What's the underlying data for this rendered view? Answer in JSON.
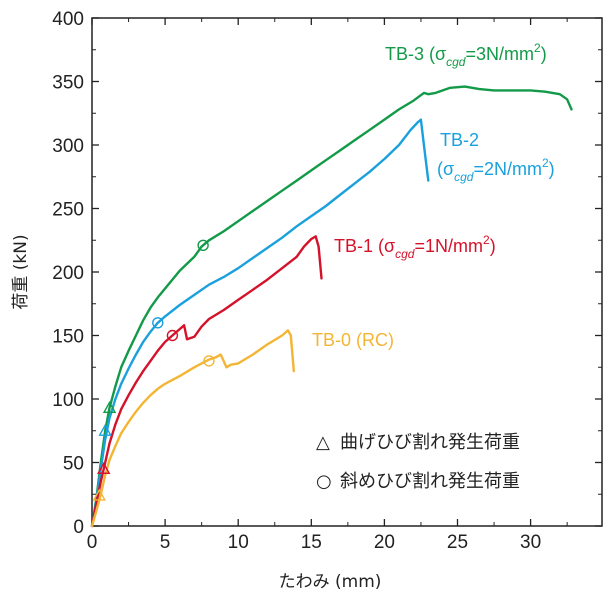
{
  "chart_data": {
    "type": "line",
    "xlabel": "たわみ (mm)",
    "ylabel": "荷重 (kN)",
    "xlim": [
      0,
      34
    ],
    "ylim": [
      0,
      400
    ],
    "x_ticks": [
      "0",
      "5",
      "10",
      "15",
      "20",
      "25",
      "30"
    ],
    "y_ticks": [
      "0",
      "50",
      "100",
      "150",
      "200",
      "250",
      "300",
      "350",
      "400"
    ],
    "grid": false,
    "series": [
      {
        "name": "TB-3",
        "label_main": "TB-3 (σ",
        "label_sub": "cgd",
        "label_rest": "=3N/mm",
        "label_sup": "2",
        "label_close": ")",
        "color": "#129a48",
        "points": [
          [
            0,
            0
          ],
          [
            0.3,
            22
          ],
          [
            0.6,
            50
          ],
          [
            0.9,
            75
          ],
          [
            1.2,
            93
          ],
          [
            1.6,
            110
          ],
          [
            2,
            125
          ],
          [
            2.5,
            138
          ],
          [
            3,
            150
          ],
          [
            3.5,
            162
          ],
          [
            4,
            172
          ],
          [
            4.5,
            180
          ],
          [
            5,
            187
          ],
          [
            6,
            201
          ],
          [
            7,
            212
          ],
          [
            7.5,
            220
          ],
          [
            8,
            225
          ],
          [
            9,
            232
          ],
          [
            10,
            240
          ],
          [
            11,
            248
          ],
          [
            12,
            256
          ],
          [
            13,
            264
          ],
          [
            14,
            272
          ],
          [
            15,
            280
          ],
          [
            16,
            288
          ],
          [
            17,
            296
          ],
          [
            18,
            304
          ],
          [
            19,
            312
          ],
          [
            20,
            320
          ],
          [
            21,
            328
          ],
          [
            22,
            335
          ],
          [
            22.7,
            341
          ],
          [
            23,
            340
          ],
          [
            23.5,
            341
          ],
          [
            24.5,
            345
          ],
          [
            25.5,
            346
          ],
          [
            26.5,
            344
          ],
          [
            27.5,
            343
          ],
          [
            28.5,
            343
          ],
          [
            30,
            343
          ],
          [
            31,
            342
          ],
          [
            32,
            340
          ],
          [
            32.5,
            336
          ],
          [
            32.8,
            328
          ]
        ]
      },
      {
        "name": "TB-2",
        "label_main": "TB-2",
        "label_line2": "(σ",
        "label_sub": "cgd",
        "label_rest": "=2N/mm",
        "label_sup": "2",
        "label_close": ")",
        "color": "#1aa0dc",
        "points": [
          [
            0,
            0
          ],
          [
            0.3,
            20
          ],
          [
            0.6,
            45
          ],
          [
            0.9,
            68
          ],
          [
            1.2,
            85
          ],
          [
            1.6,
            100
          ],
          [
            2,
            112
          ],
          [
            2.5,
            124
          ],
          [
            3,
            135
          ],
          [
            3.5,
            145
          ],
          [
            4,
            153
          ],
          [
            4.5,
            160
          ],
          [
            5,
            165
          ],
          [
            6,
            174
          ],
          [
            7,
            182
          ],
          [
            8,
            190
          ],
          [
            9,
            196
          ],
          [
            10,
            203
          ],
          [
            11,
            211
          ],
          [
            12,
            219
          ],
          [
            13,
            227
          ],
          [
            14,
            236
          ],
          [
            15,
            244
          ],
          [
            16,
            252
          ],
          [
            17,
            261
          ],
          [
            18,
            270
          ],
          [
            19,
            279
          ],
          [
            20,
            289
          ],
          [
            21,
            300
          ],
          [
            21.8,
            312
          ],
          [
            22.3,
            318
          ],
          [
            22.5,
            320
          ],
          [
            22.7,
            300
          ],
          [
            23,
            272
          ]
        ]
      },
      {
        "name": "TB-1",
        "label_main": "TB-1 (σ",
        "label_sub": "cgd",
        "label_rest": "=1N/mm",
        "label_sup": "2",
        "label_close": ")",
        "color": "#d4122a",
        "points": [
          [
            0,
            0
          ],
          [
            0.3,
            18
          ],
          [
            0.6,
            35
          ],
          [
            0.9,
            50
          ],
          [
            1.2,
            65
          ],
          [
            1.6,
            80
          ],
          [
            2,
            92
          ],
          [
            2.5,
            103
          ],
          [
            3,
            113
          ],
          [
            3.5,
            122
          ],
          [
            4,
            130
          ],
          [
            4.5,
            138
          ],
          [
            5,
            145
          ],
          [
            5.5,
            150
          ],
          [
            6,
            155
          ],
          [
            6.3,
            158
          ],
          [
            6.5,
            147
          ],
          [
            7,
            149
          ],
          [
            7.5,
            157
          ],
          [
            8,
            163
          ],
          [
            9,
            170
          ],
          [
            10,
            178
          ],
          [
            11,
            186
          ],
          [
            12,
            194
          ],
          [
            13,
            203
          ],
          [
            14,
            212
          ],
          [
            14.5,
            220
          ],
          [
            15,
            226
          ],
          [
            15.3,
            228
          ],
          [
            15.5,
            220
          ],
          [
            15.7,
            195
          ]
        ]
      },
      {
        "name": "TB-0",
        "label_main": "TB-0 (RC)",
        "color": "#f3b534",
        "points": [
          [
            0,
            0
          ],
          [
            0.3,
            12
          ],
          [
            0.6,
            25
          ],
          [
            0.9,
            40
          ],
          [
            1.2,
            52
          ],
          [
            1.6,
            63
          ],
          [
            2,
            73
          ],
          [
            2.5,
            82
          ],
          [
            3,
            90
          ],
          [
            3.5,
            97
          ],
          [
            4,
            103
          ],
          [
            4.5,
            108
          ],
          [
            5,
            112
          ],
          [
            6,
            118
          ],
          [
            7,
            125
          ],
          [
            7.5,
            128
          ],
          [
            8,
            131
          ],
          [
            8.5,
            133
          ],
          [
            8.8,
            135
          ],
          [
            9,
            130
          ],
          [
            9.2,
            125
          ],
          [
            9.5,
            127
          ],
          [
            10,
            128
          ],
          [
            11,
            135
          ],
          [
            12,
            143
          ],
          [
            13,
            150
          ],
          [
            13.4,
            154
          ],
          [
            13.6,
            150
          ],
          [
            13.8,
            122
          ]
        ]
      }
    ],
    "markers": {
      "flexural_crack": [
        {
          "series": "TB-3",
          "x": 1.2,
          "y": 93
        },
        {
          "series": "TB-2",
          "x": 0.9,
          "y": 75
        },
        {
          "series": "TB-1",
          "x": 0.8,
          "y": 45
        },
        {
          "series": "TB-0",
          "x": 0.5,
          "y": 24
        }
      ],
      "shear_crack": [
        {
          "series": "TB-3",
          "x": 7.6,
          "y": 221
        },
        {
          "series": "TB-2",
          "x": 4.5,
          "y": 160
        },
        {
          "series": "TB-1",
          "x": 5.5,
          "y": 150
        },
        {
          "series": "TB-0",
          "x": 8.0,
          "y": 130
        }
      ]
    },
    "legend": {
      "placement": "bottom-right",
      "items": [
        {
          "symbol": "△",
          "label": "曲げひび割れ発生荷重"
        },
        {
          "symbol": "○",
          "label": "斜めひび割れ発生荷重"
        }
      ]
    }
  }
}
